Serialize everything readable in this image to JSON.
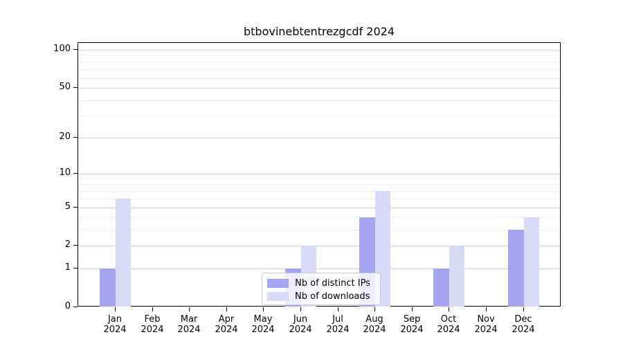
{
  "title": "btbovinebtentrezgcdf 2024",
  "chart_data": {
    "type": "bar",
    "title": "btbovinebtentrezgcdf 2024",
    "categories": [
      "Jan 2024",
      "Feb 2024",
      "Mar 2024",
      "Apr 2024",
      "May 2024",
      "Jun 2024",
      "Jul 2024",
      "Aug 2024",
      "Sep 2024",
      "Oct 2024",
      "Nov 2024",
      "Dec 2024"
    ],
    "series": [
      {
        "name": "Nb of distinct IPs",
        "color": "#a5a5f2",
        "values": [
          1,
          0,
          0,
          0,
          0,
          1,
          0,
          4,
          0,
          1,
          0,
          3
        ]
      },
      {
        "name": "Nb of downloads",
        "color": "#d9d9f8",
        "values": [
          6,
          0,
          0,
          0,
          0,
          2,
          0,
          7,
          0,
          2,
          0,
          4
        ]
      }
    ],
    "xlabel": "",
    "ylabel": "",
    "yscale": "log10(value+1)",
    "y_tick_values": [
      0,
      1,
      2,
      5,
      10,
      20,
      50,
      100
    ],
    "y_tick_labels": [
      "0",
      "1",
      "2",
      "5",
      "10",
      "20",
      "50",
      "100"
    ],
    "y_minor_gridline_values": [
      3,
      4,
      6,
      7,
      8,
      9,
      30,
      40,
      60,
      70,
      80,
      90
    ],
    "ylim": [
      0,
      112
    ],
    "grid": true,
    "legend_position": "lower center"
  },
  "colors": {
    "major_grid": "#d3d3d3",
    "minor_grid": "#ededed",
    "axis": "#000000",
    "legend_border": "#cccccc"
  }
}
